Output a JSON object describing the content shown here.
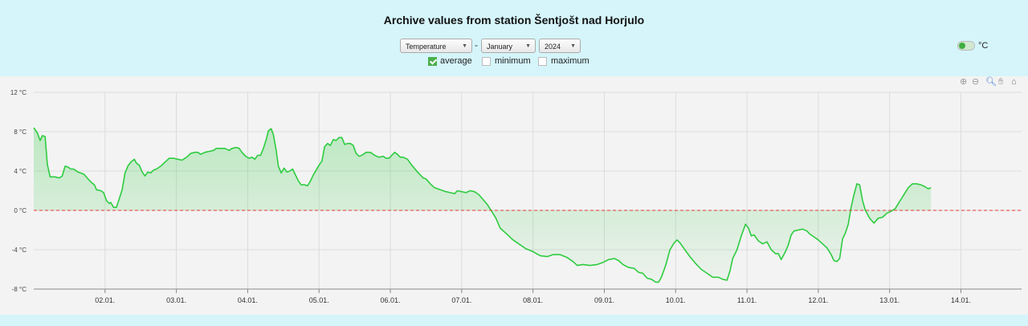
{
  "title": "Archive values from station Šentjošt nad Horjulo",
  "controls": {
    "quantity": "Temperature",
    "separator": "-",
    "month": "January",
    "year": "2024",
    "checkboxes": [
      {
        "label": "average",
        "checked": true
      },
      {
        "label": "minimum",
        "checked": false
      },
      {
        "label": "maximum",
        "checked": false
      }
    ],
    "unit_toggle_label": "°C"
  },
  "toolbar": [
    "zoom-in-icon",
    "zoom-out-icon",
    "magnify-icon",
    "pan-hand-icon",
    "home-icon"
  ],
  "colors": {
    "line": "#2ecc40",
    "zero_line": "#e53935",
    "fill": "#2ecc40",
    "background": "#f3f3f3",
    "page": "#d5f5fb"
  },
  "chart_data": {
    "type": "area",
    "title": "",
    "xlabel": "",
    "ylabel": "",
    "unit": "°C",
    "ylim": [
      -8,
      12
    ],
    "y_ticks": [
      "12 °C",
      "8 °C",
      "4 °C",
      "0 °C",
      "-4 °C",
      "-8 °C"
    ],
    "x_ticks": [
      "02.01.",
      "03.01.",
      "04.01.",
      "05.01.",
      "06.01.",
      "07.01.",
      "08.01.",
      "09.01.",
      "10.01.",
      "11.01.",
      "12.01.",
      "13.01.",
      "14.01."
    ],
    "xlim": [
      1.0,
      14.85
    ],
    "reference_line": {
      "value": 0,
      "style": "dashed"
    },
    "grid": true,
    "series": [
      {
        "values": [
          [
            1.0,
            8.4
          ],
          [
            1.05,
            7.9
          ],
          [
            1.09,
            7.1
          ],
          [
            1.12,
            7.6
          ],
          [
            1.16,
            7.5
          ],
          [
            1.19,
            4.7
          ],
          [
            1.23,
            3.4
          ],
          [
            1.3,
            3.4
          ],
          [
            1.36,
            3.3
          ],
          [
            1.4,
            3.5
          ],
          [
            1.44,
            4.5
          ],
          [
            1.48,
            4.4
          ],
          [
            1.52,
            4.2
          ],
          [
            1.56,
            4.2
          ],
          [
            1.62,
            3.9
          ],
          [
            1.7,
            3.7
          ],
          [
            1.75,
            3.3
          ],
          [
            1.8,
            2.9
          ],
          [
            1.85,
            2.6
          ],
          [
            1.88,
            2.1
          ],
          [
            1.94,
            2.0
          ],
          [
            1.98,
            1.8
          ],
          [
            2.02,
            1.0
          ],
          [
            2.06,
            0.7
          ],
          [
            2.08,
            0.8
          ],
          [
            2.12,
            0.3
          ],
          [
            2.16,
            0.3
          ],
          [
            2.2,
            1.2
          ],
          [
            2.24,
            2.1
          ],
          [
            2.28,
            3.8
          ],
          [
            2.32,
            4.5
          ],
          [
            2.36,
            4.9
          ],
          [
            2.41,
            5.2
          ],
          [
            2.44,
            4.8
          ],
          [
            2.48,
            4.6
          ],
          [
            2.52,
            3.9
          ],
          [
            2.56,
            3.5
          ],
          [
            2.6,
            3.9
          ],
          [
            2.64,
            3.8
          ],
          [
            2.68,
            4.1
          ],
          [
            2.72,
            4.2
          ],
          [
            2.78,
            4.5
          ],
          [
            2.84,
            4.9
          ],
          [
            2.9,
            5.3
          ],
          [
            2.96,
            5.3
          ],
          [
            3.02,
            5.2
          ],
          [
            3.08,
            5.1
          ],
          [
            3.12,
            5.3
          ],
          [
            3.16,
            5.5
          ],
          [
            3.2,
            5.8
          ],
          [
            3.26,
            5.9
          ],
          [
            3.3,
            5.9
          ],
          [
            3.34,
            5.7
          ],
          [
            3.4,
            5.9
          ],
          [
            3.46,
            6.0
          ],
          [
            3.52,
            6.1
          ],
          [
            3.56,
            6.3
          ],
          [
            3.62,
            6.3
          ],
          [
            3.68,
            6.3
          ],
          [
            3.74,
            6.1
          ],
          [
            3.78,
            6.3
          ],
          [
            3.84,
            6.4
          ],
          [
            3.88,
            6.3
          ],
          [
            3.92,
            5.9
          ],
          [
            3.97,
            5.5
          ],
          [
            4.02,
            5.3
          ],
          [
            4.06,
            5.4
          ],
          [
            4.1,
            5.2
          ],
          [
            4.14,
            5.6
          ],
          [
            4.18,
            5.6
          ],
          [
            4.22,
            6.3
          ],
          [
            4.26,
            7.2
          ],
          [
            4.29,
            8.1
          ],
          [
            4.33,
            8.3
          ],
          [
            4.36,
            7.7
          ],
          [
            4.4,
            6.1
          ],
          [
            4.43,
            4.5
          ],
          [
            4.47,
            3.8
          ],
          [
            4.51,
            4.3
          ],
          [
            4.55,
            3.9
          ],
          [
            4.59,
            4.0
          ],
          [
            4.63,
            4.2
          ],
          [
            4.67,
            3.6
          ],
          [
            4.71,
            3.0
          ],
          [
            4.75,
            2.6
          ],
          [
            4.8,
            2.6
          ],
          [
            4.84,
            2.5
          ],
          [
            4.88,
            3.0
          ],
          [
            4.92,
            3.6
          ],
          [
            4.96,
            4.1
          ],
          [
            5.0,
            4.6
          ],
          [
            5.04,
            5.0
          ],
          [
            5.08,
            6.5
          ],
          [
            5.12,
            6.8
          ],
          [
            5.16,
            6.6
          ],
          [
            5.2,
            7.2
          ],
          [
            5.24,
            7.1
          ],
          [
            5.28,
            7.4
          ],
          [
            5.32,
            7.4
          ],
          [
            5.36,
            6.7
          ],
          [
            5.4,
            6.8
          ],
          [
            5.44,
            6.8
          ],
          [
            5.48,
            6.6
          ],
          [
            5.52,
            5.8
          ],
          [
            5.56,
            5.5
          ],
          [
            5.6,
            5.6
          ],
          [
            5.66,
            5.9
          ],
          [
            5.72,
            5.9
          ],
          [
            5.78,
            5.6
          ],
          [
            5.84,
            5.4
          ],
          [
            5.9,
            5.5
          ],
          [
            5.94,
            5.3
          ],
          [
            5.98,
            5.3
          ],
          [
            6.02,
            5.6
          ],
          [
            6.06,
            5.9
          ],
          [
            6.1,
            5.7
          ],
          [
            6.14,
            5.4
          ],
          [
            6.18,
            5.4
          ],
          [
            6.24,
            5.2
          ],
          [
            6.3,
            4.6
          ],
          [
            6.38,
            3.9
          ],
          [
            6.46,
            3.3
          ],
          [
            6.5,
            3.2
          ],
          [
            6.56,
            2.7
          ],
          [
            6.62,
            2.3
          ],
          [
            6.7,
            2.1
          ],
          [
            6.78,
            1.9
          ],
          [
            6.84,
            1.8
          ],
          [
            6.9,
            1.7
          ],
          [
            6.94,
            2.0
          ],
          [
            7.0,
            1.9
          ],
          [
            7.06,
            1.8
          ],
          [
            7.12,
            2.0
          ],
          [
            7.18,
            1.9
          ],
          [
            7.24,
            1.6
          ],
          [
            7.3,
            1.1
          ],
          [
            7.36,
            0.6
          ],
          [
            7.42,
            -0.1
          ],
          [
            7.48,
            -0.8
          ],
          [
            7.54,
            -1.8
          ],
          [
            7.6,
            -2.2
          ],
          [
            7.66,
            -2.6
          ],
          [
            7.72,
            -3.0
          ],
          [
            7.8,
            -3.4
          ],
          [
            7.9,
            -3.9
          ],
          [
            8.0,
            -4.2
          ],
          [
            8.1,
            -4.6
          ],
          [
            8.2,
            -4.7
          ],
          [
            8.28,
            -4.5
          ],
          [
            8.38,
            -4.5
          ],
          [
            8.48,
            -4.8
          ],
          [
            8.56,
            -5.2
          ],
          [
            8.62,
            -5.6
          ],
          [
            8.7,
            -5.5
          ],
          [
            8.8,
            -5.6
          ],
          [
            8.9,
            -5.5
          ],
          [
            8.98,
            -5.3
          ],
          [
            9.06,
            -5.0
          ],
          [
            9.14,
            -4.9
          ],
          [
            9.2,
            -5.1
          ],
          [
            9.26,
            -5.5
          ],
          [
            9.34,
            -5.8
          ],
          [
            9.42,
            -5.9
          ],
          [
            9.48,
            -6.3
          ],
          [
            9.54,
            -6.4
          ],
          [
            9.6,
            -6.9
          ],
          [
            9.66,
            -7.0
          ],
          [
            9.72,
            -7.3
          ],
          [
            9.76,
            -7.3
          ],
          [
            9.8,
            -6.8
          ],
          [
            9.86,
            -5.6
          ],
          [
            9.92,
            -4.0
          ],
          [
            9.98,
            -3.3
          ],
          [
            10.02,
            -3.0
          ],
          [
            10.06,
            -3.3
          ],
          [
            10.12,
            -3.9
          ],
          [
            10.2,
            -4.7
          ],
          [
            10.28,
            -5.4
          ],
          [
            10.36,
            -6.0
          ],
          [
            10.44,
            -6.4
          ],
          [
            10.52,
            -6.8
          ],
          [
            10.6,
            -6.8
          ],
          [
            10.66,
            -7.0
          ],
          [
            10.72,
            -7.1
          ],
          [
            10.76,
            -6.2
          ],
          [
            10.8,
            -4.9
          ],
          [
            10.86,
            -4.0
          ],
          [
            10.92,
            -2.6
          ],
          [
            10.98,
            -1.4
          ],
          [
            11.02,
            -1.8
          ],
          [
            11.06,
            -2.6
          ],
          [
            11.1,
            -2.5
          ],
          [
            11.16,
            -3.1
          ],
          [
            11.22,
            -3.4
          ],
          [
            11.28,
            -3.2
          ],
          [
            11.34,
            -4.0
          ],
          [
            11.4,
            -4.4
          ],
          [
            11.44,
            -4.4
          ],
          [
            11.48,
            -5.0
          ],
          [
            11.54,
            -4.2
          ],
          [
            11.58,
            -3.5
          ],
          [
            11.62,
            -2.5
          ],
          [
            11.66,
            -2.1
          ],
          [
            11.72,
            -2.0
          ],
          [
            11.78,
            -1.9
          ],
          [
            11.84,
            -2.1
          ],
          [
            11.88,
            -2.4
          ],
          [
            11.94,
            -2.7
          ],
          [
            12.0,
            -3.0
          ],
          [
            12.06,
            -3.4
          ],
          [
            12.12,
            -3.8
          ],
          [
            12.18,
            -4.5
          ],
          [
            12.22,
            -5.1
          ],
          [
            12.26,
            -5.2
          ],
          [
            12.3,
            -4.9
          ],
          [
            12.34,
            -2.9
          ],
          [
            12.38,
            -2.3
          ],
          [
            12.42,
            -1.4
          ],
          [
            12.46,
            0.3
          ],
          [
            12.5,
            1.6
          ],
          [
            12.54,
            2.7
          ],
          [
            12.58,
            2.6
          ],
          [
            12.62,
            1.0
          ],
          [
            12.66,
            0.0
          ],
          [
            12.72,
            -0.8
          ],
          [
            12.78,
            -1.3
          ],
          [
            12.84,
            -0.8
          ],
          [
            12.9,
            -0.7
          ],
          [
            12.96,
            -0.3
          ],
          [
            13.02,
            -0.1
          ],
          [
            13.08,
            0.2
          ],
          [
            13.14,
            0.9
          ],
          [
            13.2,
            1.6
          ],
          [
            13.26,
            2.3
          ],
          [
            13.32,
            2.7
          ],
          [
            13.38,
            2.7
          ],
          [
            13.44,
            2.6
          ],
          [
            13.5,
            2.4
          ],
          [
            13.54,
            2.2
          ],
          [
            13.58,
            2.3
          ]
        ]
      }
    ]
  }
}
